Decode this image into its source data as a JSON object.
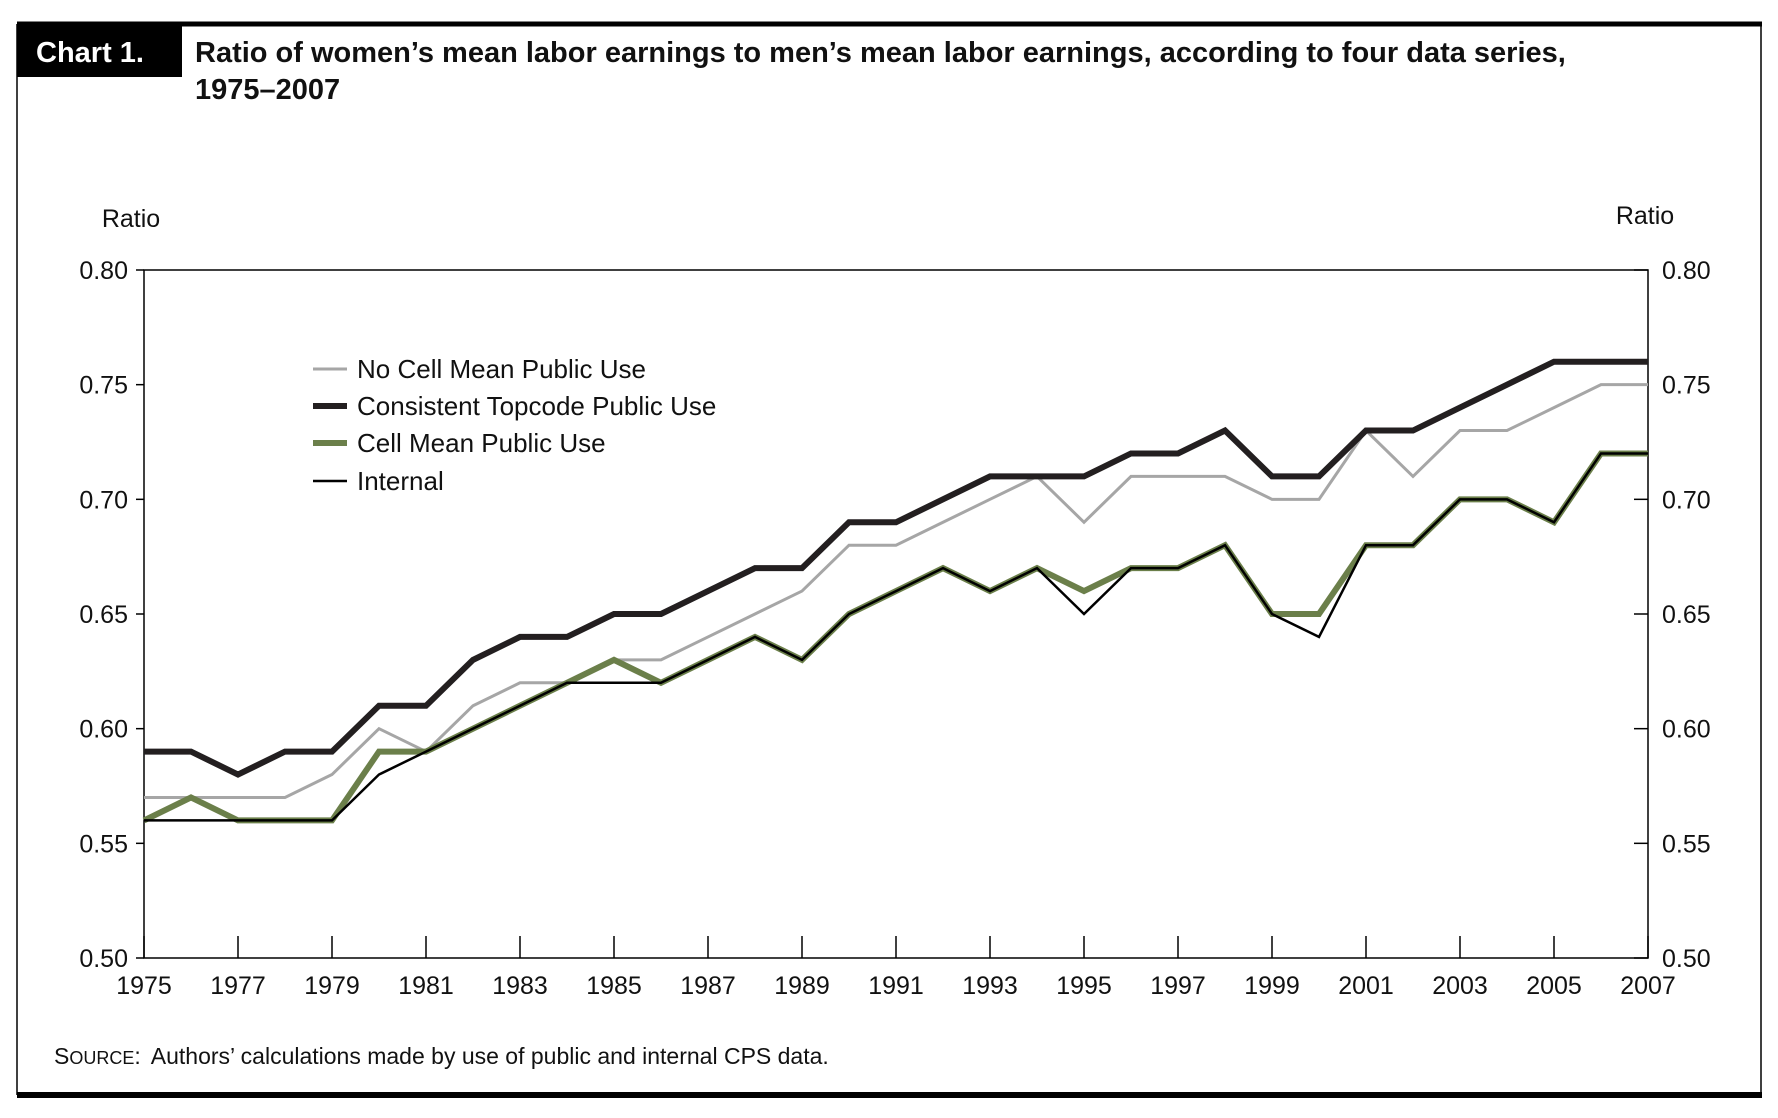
{
  "chart_data": {
    "type": "line",
    "label": "Chart 1.",
    "title": "Ratio of women’s mean labor earnings to men’s mean labor earnings, according to four data series,",
    "title_line2": "1975–2007",
    "ylabel_left": "Ratio",
    "ylabel_right": "Ratio",
    "ylim": [
      0.5,
      0.8
    ],
    "yticks": [
      "0.80",
      "0.75",
      "0.70",
      "0.65",
      "0.60",
      "0.55",
      "0.50"
    ],
    "xlim": [
      1975,
      2007
    ],
    "xticks": [
      "1975",
      "1977",
      "1979",
      "1981",
      "1983",
      "1985",
      "1987",
      "1989",
      "1991",
      "1993",
      "1995",
      "1997",
      "1999",
      "2001",
      "2003",
      "2005",
      "2007"
    ],
    "grid": false,
    "legend_position": "upper-left",
    "x": [
      1975,
      1976,
      1977,
      1978,
      1979,
      1980,
      1981,
      1982,
      1983,
      1984,
      1985,
      1986,
      1987,
      1988,
      1989,
      1990,
      1991,
      1992,
      1993,
      1994,
      1995,
      1996,
      1997,
      1998,
      1999,
      2000,
      2001,
      2002,
      2003,
      2004,
      2005,
      2006,
      2007
    ],
    "series": [
      {
        "name": "No Cell Mean Public Use",
        "color": "#a6a6a6",
        "width": 3,
        "values": [
          0.57,
          0.57,
          0.57,
          0.57,
          0.58,
          0.6,
          0.59,
          0.61,
          0.62,
          0.62,
          0.63,
          0.63,
          0.64,
          0.65,
          0.66,
          0.68,
          0.68,
          0.69,
          0.7,
          0.71,
          0.69,
          0.71,
          0.71,
          0.71,
          0.7,
          0.7,
          0.73,
          0.71,
          0.73,
          0.73,
          0.74,
          0.75,
          0.75
        ]
      },
      {
        "name": "Consistent Topcode Public Use",
        "color": "#231f20",
        "width": 6,
        "values": [
          0.59,
          0.59,
          0.58,
          0.59,
          0.59,
          0.61,
          0.61,
          0.63,
          0.64,
          0.64,
          0.65,
          0.65,
          0.66,
          0.67,
          0.67,
          0.69,
          0.69,
          0.7,
          0.71,
          0.71,
          0.71,
          0.72,
          0.72,
          0.73,
          0.71,
          0.71,
          0.73,
          0.73,
          0.74,
          0.75,
          0.76,
          0.76,
          0.76
        ]
      },
      {
        "name": "Cell Mean Public Use",
        "color": "#6b7f4a",
        "width": 6,
        "values": [
          0.56,
          0.57,
          0.56,
          0.56,
          0.56,
          0.59,
          0.59,
          0.6,
          0.61,
          0.62,
          0.63,
          0.62,
          0.63,
          0.64,
          0.63,
          0.65,
          0.66,
          0.67,
          0.66,
          0.67,
          0.66,
          0.67,
          0.67,
          0.68,
          0.65,
          0.65,
          0.68,
          0.68,
          0.7,
          0.7,
          0.69,
          0.72,
          0.72
        ]
      },
      {
        "name": "Internal",
        "color": "#000000",
        "width": 2.5,
        "values": [
          0.56,
          0.56,
          0.56,
          0.56,
          0.56,
          0.58,
          0.59,
          0.6,
          0.61,
          0.62,
          0.62,
          0.62,
          0.63,
          0.64,
          0.63,
          0.65,
          0.66,
          0.67,
          0.66,
          0.67,
          0.65,
          0.67,
          0.67,
          0.68,
          0.65,
          0.64,
          0.68,
          0.68,
          0.7,
          0.7,
          0.69,
          0.72,
          0.72
        ]
      }
    ],
    "source_label": "Source:",
    "source_text": "Authors’ calculations made by use of public and internal CPS data."
  }
}
